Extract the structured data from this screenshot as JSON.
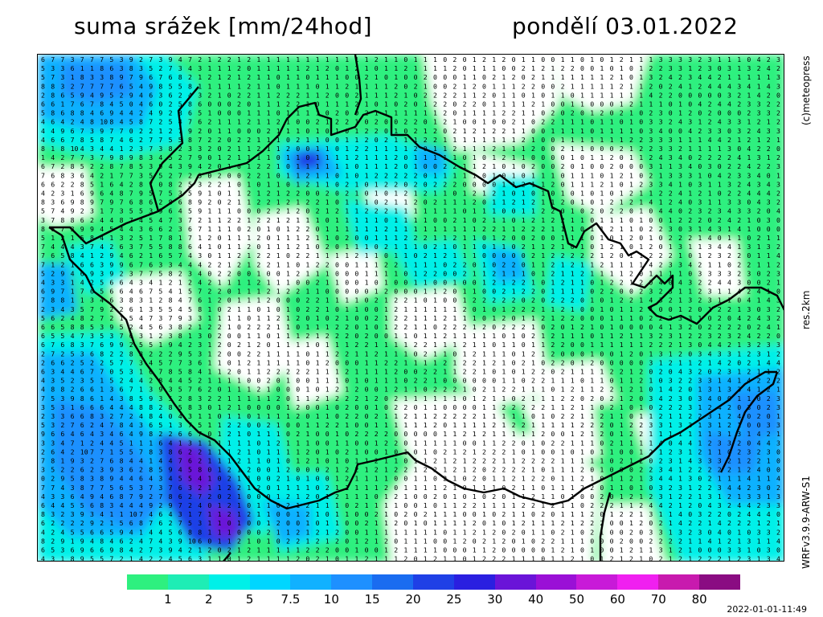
{
  "header": {
    "title": "suma srážek [mm/24hod]",
    "date": "pondělí 03.01.2022"
  },
  "side": {
    "copyright": "(c)meteopress",
    "resolution": "res.2km",
    "model": "WRFv3.9.9-ARW-S1"
  },
  "legend": {
    "colors": [
      "#2ef07f",
      "#1eedb5",
      "#00f0e8",
      "#00d6ff",
      "#11b1ff",
      "#1e90ff",
      "#1a6cf0",
      "#1f40e6",
      "#2a1fe0",
      "#6a14d8",
      "#9a10d6",
      "#c81ad8",
      "#f020f0",
      "#c81aae",
      "#8a0c82"
    ],
    "labels": [
      "1",
      "2",
      "5",
      "7.5",
      "10",
      "15",
      "20",
      "25",
      "30",
      "40",
      "50",
      "60",
      "70",
      "80"
    ]
  },
  "timestamp": "2022-01-01-11:49"
}
